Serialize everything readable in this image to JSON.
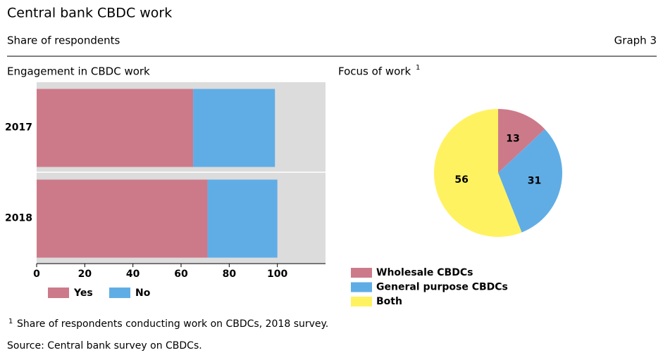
{
  "header": {
    "title": "Central bank CBDC work",
    "subtitle": "Share of respondents",
    "graph_label": "Graph 3"
  },
  "chart_data": [
    {
      "type": "bar",
      "title": "Engagement in CBDC work",
      "orientation": "horizontal",
      "stacked": true,
      "categories": [
        "2017",
        "2018"
      ],
      "series": [
        {
          "name": "Yes",
          "color": "#cc7a8a",
          "values": [
            65,
            71
          ]
        },
        {
          "name": "No",
          "color": "#60ade6",
          "values": [
            34,
            29
          ]
        }
      ],
      "xlim": [
        0,
        120
      ],
      "xticks": [
        0,
        20,
        40,
        60,
        80,
        100
      ],
      "legend": "bottom"
    },
    {
      "type": "pie",
      "title": "Focus of work",
      "title_note": "1",
      "categories": [
        "Wholesale CBDCs",
        "General purpose CBDCs",
        "Both"
      ],
      "values": [
        13,
        31,
        56
      ],
      "colors": [
        "#cc7a8a",
        "#60ade6",
        "#fff261"
      ],
      "legend": "bottom"
    }
  ],
  "footnotes": {
    "marker": "1",
    "note": "Share of respondents conducting work on CBDCs, 2018 survey.",
    "source": "Source: Central bank survey on CBDCs."
  }
}
